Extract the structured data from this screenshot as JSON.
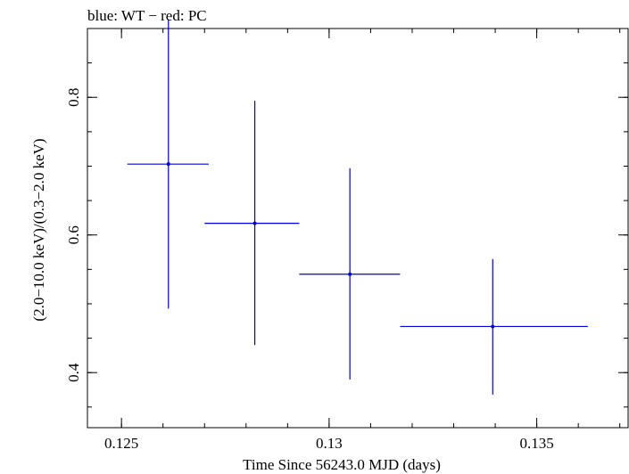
{
  "chart_data": {
    "type": "scatter",
    "title": "blue: WT − red: PC",
    "xlabel": "Time Since 56243.0 MJD (days)",
    "ylabel": "(2.0−10.0 keV)/(0.3−2.0 keV)",
    "xlim": [
      0.12418,
      0.1372
    ],
    "ylim": [
      0.32,
      0.9
    ],
    "x_ticks": [
      {
        "value": 0.125,
        "label": "0.125"
      },
      {
        "value": 0.13,
        "label": "0.13"
      },
      {
        "value": 0.135,
        "label": "0.135"
      }
    ],
    "y_ticks": [
      {
        "value": 0.4,
        "label": "0.4"
      },
      {
        "value": 0.6,
        "label": "0.6"
      },
      {
        "value": 0.8,
        "label": "0.8"
      }
    ],
    "series": [
      {
        "name": "WT",
        "color": "#0000dd",
        "points": [
          {
            "x": 0.12613,
            "xerr": [
              0.12514,
              0.1271
            ],
            "y": 0.703,
            "yerr": [
              0.493,
              0.913
            ]
          },
          {
            "x": 0.12821,
            "xerr": [
              0.127,
              0.12928
            ],
            "y": 0.617,
            "yerr": [
              0.44,
              0.795
            ]
          },
          {
            "x": 0.1305,
            "xerr": [
              0.12928,
              0.13171
            ],
            "y": 0.543,
            "yerr": [
              0.39,
              0.697
            ]
          },
          {
            "x": 0.13394,
            "xerr": [
              0.13171,
              0.13623
            ],
            "y": 0.467,
            "yerr": [
              0.368,
              0.565
            ]
          }
        ]
      }
    ]
  }
}
